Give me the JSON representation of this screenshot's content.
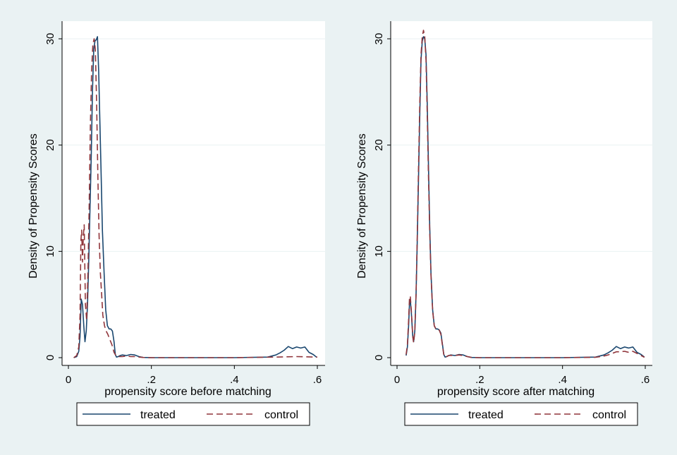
{
  "chart_data": [
    {
      "type": "line",
      "xlabel": "propensity score before matching",
      "ylabel": "Density of Propensity Scores",
      "xlim": [
        0,
        0.6
      ],
      "ylim": [
        0,
        31
      ],
      "xticks": [
        {
          "v": 0,
          "label": "0"
        },
        {
          "v": 0.2,
          "label": ".2"
        },
        {
          "v": 0.4,
          "label": ".4"
        },
        {
          "v": 0.6,
          "label": ".6"
        }
      ],
      "yticks": [
        {
          "v": 0,
          "label": "0"
        },
        {
          "v": 10,
          "label": "10"
        },
        {
          "v": 20,
          "label": "20"
        },
        {
          "v": 30,
          "label": "30"
        }
      ],
      "grid": "horizontal",
      "legend_position": "bottom",
      "series": [
        {
          "name": "treated",
          "style": "solid",
          "color": "#1a476f",
          "x": [
            0.013,
            0.02,
            0.025,
            0.028,
            0.031,
            0.034,
            0.037,
            0.04,
            0.043,
            0.046,
            0.049,
            0.052,
            0.055,
            0.058,
            0.061,
            0.064,
            0.067,
            0.07,
            0.073,
            0.076,
            0.079,
            0.082,
            0.086,
            0.09,
            0.094,
            0.098,
            0.102,
            0.106,
            0.11,
            0.113,
            0.116,
            0.12,
            0.125,
            0.13,
            0.14,
            0.15,
            0.16,
            0.17,
            0.18,
            0.2,
            0.3,
            0.4,
            0.48,
            0.5,
            0.51,
            0.52,
            0.53,
            0.54,
            0.55,
            0.56,
            0.57,
            0.58,
            0.59,
            0.598
          ],
          "y": [
            0,
            0.1,
            0.6,
            2.0,
            5.5,
            5.0,
            3.0,
            1.5,
            2.5,
            5.0,
            9.0,
            14.0,
            19.0,
            25.0,
            29.0,
            29.8,
            29.9,
            30.2,
            27.0,
            22.0,
            17.0,
            12.0,
            8.0,
            4.5,
            3.0,
            2.7,
            2.7,
            2.5,
            1.5,
            0.3,
            0.05,
            0.1,
            0.2,
            0.25,
            0.2,
            0.3,
            0.25,
            0.1,
            0.02,
            0,
            0,
            0,
            0.05,
            0.25,
            0.45,
            0.7,
            1.05,
            0.85,
            1.0,
            0.9,
            1.0,
            0.5,
            0.3,
            0.05
          ]
        },
        {
          "name": "control",
          "style": "dashed",
          "color": "#90353b",
          "x": [
            0.013,
            0.02,
            0.025,
            0.028,
            0.03,
            0.032,
            0.034,
            0.036,
            0.038,
            0.041,
            0.044,
            0.047,
            0.05,
            0.053,
            0.056,
            0.059,
            0.062,
            0.065,
            0.068,
            0.071,
            0.074,
            0.077,
            0.08,
            0.083,
            0.087,
            0.091,
            0.095,
            0.1,
            0.105,
            0.11,
            0.115,
            0.12,
            0.13,
            0.14,
            0.15,
            0.16,
            0.17,
            0.18,
            0.2,
            0.3,
            0.4,
            0.5,
            0.55,
            0.6
          ],
          "y": [
            0,
            0.2,
            1.0,
            4.0,
            11.0,
            12.0,
            9.0,
            11.5,
            12.5,
            5.0,
            3.5,
            8.0,
            14.0,
            22.0,
            27.0,
            29.5,
            30.0,
            29.0,
            24.0,
            17.0,
            11.5,
            8.0,
            6.0,
            4.0,
            3.0,
            2.5,
            2.2,
            1.7,
            1.2,
            0.5,
            0.15,
            0.1,
            0.1,
            0.15,
            0.1,
            0.1,
            0.05,
            0.02,
            0,
            0,
            0,
            0.05,
            0.1,
            0.05
          ]
        }
      ]
    },
    {
      "type": "line",
      "xlabel": "propensity score after matching",
      "ylabel": "Density of Propensity Scores",
      "xlim": [
        0,
        0.6
      ],
      "ylim": [
        0,
        31
      ],
      "xticks": [
        {
          "v": 0,
          "label": "0"
        },
        {
          "v": 0.2,
          "label": ".2"
        },
        {
          "v": 0.4,
          "label": ".4"
        },
        {
          "v": 0.6,
          "label": ".6"
        }
      ],
      "yticks": [
        {
          "v": 0,
          "label": "0"
        },
        {
          "v": 10,
          "label": "10"
        },
        {
          "v": 20,
          "label": "20"
        },
        {
          "v": 30,
          "label": "30"
        }
      ],
      "grid": "horizontal",
      "legend_position": "bottom",
      "series": [
        {
          "name": "treated",
          "style": "solid",
          "color": "#1a476f",
          "x": [
            0.022,
            0.025,
            0.028,
            0.03,
            0.032,
            0.035,
            0.038,
            0.04,
            0.043,
            0.046,
            0.049,
            0.052,
            0.055,
            0.058,
            0.061,
            0.064,
            0.067,
            0.07,
            0.073,
            0.076,
            0.079,
            0.082,
            0.086,
            0.09,
            0.094,
            0.098,
            0.102,
            0.106,
            0.11,
            0.113,
            0.116,
            0.12,
            0.125,
            0.13,
            0.14,
            0.15,
            0.16,
            0.17,
            0.18,
            0.2,
            0.3,
            0.4,
            0.48,
            0.5,
            0.51,
            0.52,
            0.53,
            0.54,
            0.55,
            0.56,
            0.57,
            0.58,
            0.59,
            0.598
          ],
          "y": [
            0.2,
            1.0,
            3.0,
            5.0,
            5.5,
            4.0,
            2.0,
            1.5,
            2.5,
            6.0,
            11.0,
            17.0,
            23.0,
            28.0,
            29.8,
            30.2,
            30.0,
            28.5,
            24.0,
            18.0,
            12.5,
            8.0,
            4.5,
            3.0,
            2.7,
            2.7,
            2.6,
            2.3,
            1.2,
            0.3,
            0.05,
            0.1,
            0.2,
            0.25,
            0.2,
            0.3,
            0.25,
            0.1,
            0.02,
            0,
            0,
            0,
            0.05,
            0.25,
            0.45,
            0.7,
            1.05,
            0.85,
            1.0,
            0.9,
            1.0,
            0.5,
            0.3,
            0.05
          ]
        },
        {
          "name": "control",
          "style": "dashed",
          "color": "#90353b",
          "x": [
            0.022,
            0.025,
            0.028,
            0.03,
            0.032,
            0.035,
            0.038,
            0.04,
            0.043,
            0.046,
            0.049,
            0.052,
            0.055,
            0.058,
            0.061,
            0.064,
            0.067,
            0.07,
            0.073,
            0.076,
            0.079,
            0.082,
            0.086,
            0.09,
            0.094,
            0.098,
            0.102,
            0.106,
            0.11,
            0.113,
            0.116,
            0.12,
            0.125,
            0.13,
            0.14,
            0.15,
            0.16,
            0.17,
            0.18,
            0.2,
            0.3,
            0.4,
            0.48,
            0.5,
            0.51,
            0.52,
            0.53,
            0.54,
            0.55,
            0.56,
            0.57,
            0.58,
            0.59,
            0.598
          ],
          "y": [
            0.3,
            1.2,
            3.5,
            5.5,
            5.8,
            4.2,
            2.0,
            1.4,
            2.4,
            6.0,
            11.5,
            18.0,
            24.0,
            28.5,
            30.2,
            30.8,
            30.2,
            28.0,
            23.0,
            17.0,
            12.0,
            7.8,
            4.4,
            3.0,
            2.7,
            2.7,
            2.6,
            2.2,
            1.1,
            0.3,
            0.05,
            0.1,
            0.2,
            0.22,
            0.2,
            0.25,
            0.2,
            0.1,
            0.02,
            0,
            0,
            0,
            0.03,
            0.15,
            0.25,
            0.4,
            0.55,
            0.55,
            0.6,
            0.5,
            0.6,
            0.4,
            0.2,
            0.03
          ]
        }
      ]
    }
  ]
}
